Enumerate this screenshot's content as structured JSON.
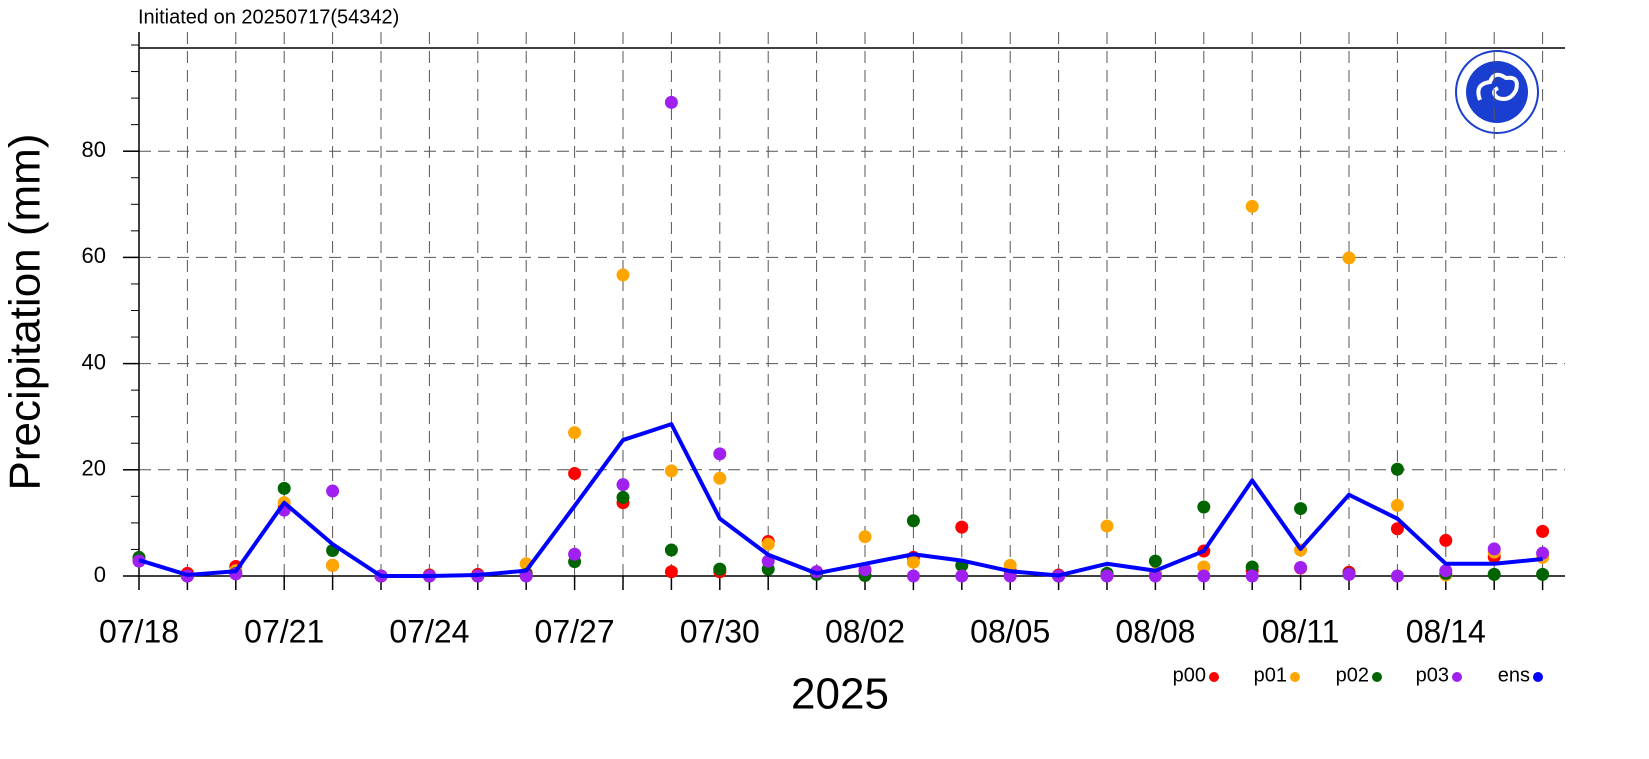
{
  "chart_data": {
    "type": "scatter",
    "title": "Initiated on 20250717(54342)",
    "ylabel": "Precipitation (mm)",
    "xlabel": "2025",
    "categories": [
      "07/18",
      null,
      null,
      "07/21",
      null,
      null,
      "07/24",
      null,
      null,
      "07/27",
      null,
      null,
      "07/30",
      null,
      null,
      "08/02",
      null,
      null,
      "08/05",
      null,
      null,
      "08/08",
      null,
      null,
      "08/11",
      null,
      null,
      "08/14",
      null,
      null
    ],
    "ylim": [
      0,
      100
    ],
    "yticks": [
      0,
      20,
      40,
      60,
      80
    ],
    "grid": true,
    "legend": "bottom-right",
    "series": [
      {
        "name": "p00",
        "color": "#ff0000",
        "style": "dots",
        "values": [
          3,
          0.5,
          1.8,
          13,
          2,
          0,
          0.2,
          0.3,
          0.5,
          19.3,
          13.8,
          0.8,
          0.8,
          6.5,
          0.5,
          1,
          3.5,
          9.2,
          1,
          0.2,
          0.3,
          0.5,
          4.7,
          1,
          1.5,
          0.7,
          8.9,
          6.7,
          3.6,
          8.4
        ]
      },
      {
        "name": "p01",
        "color": "#ffa500",
        "style": "dots",
        "values": [
          3,
          0,
          1,
          13.8,
          2,
          0,
          0,
          0,
          2.3,
          27,
          56.7,
          19.8,
          18.4,
          6,
          0.5,
          7.4,
          2.6,
          2,
          2,
          0,
          9.4,
          0.5,
          1.7,
          69.6,
          4.9,
          59.9,
          13.3,
          0.2,
          4.5,
          3.5
        ]
      },
      {
        "name": "p02",
        "color": "#006400",
        "style": "dots",
        "values": [
          3.5,
          0,
          0.5,
          16.5,
          4.8,
          0,
          0,
          0,
          0.3,
          2.7,
          14.8,
          4.9,
          1.3,
          1.3,
          0.3,
          0.1,
          10.4,
          2,
          0.1,
          0,
          0.5,
          2.8,
          13,
          1.7,
          12.7,
          0.4,
          20.1,
          0.5,
          0.3,
          0.3
        ]
      },
      {
        "name": "p03",
        "color": "#a020f0",
        "style": "dots",
        "values": [
          2.8,
          0,
          0.4,
          12.4,
          16,
          0,
          0,
          0,
          0,
          4.1,
          17.2,
          89.2,
          23,
          2.8,
          0.8,
          1.2,
          0,
          0,
          0,
          0,
          0,
          0,
          0,
          0,
          1.6,
          0.3,
          0,
          1,
          5.1,
          4.3
        ]
      },
      {
        "name": "ens",
        "color": "#0000ff",
        "style": "line",
        "values": [
          3,
          0.2,
          0.9,
          13.8,
          6,
          0,
          0,
          0.2,
          1,
          13.2,
          25.6,
          28.6,
          10.8,
          4,
          0.5,
          2.3,
          4.1,
          2.9,
          0.9,
          0.1,
          2.3,
          1,
          4.7,
          18,
          5.1,
          15.3,
          10.8,
          2.3,
          2.3,
          3.2
        ]
      }
    ]
  }
}
